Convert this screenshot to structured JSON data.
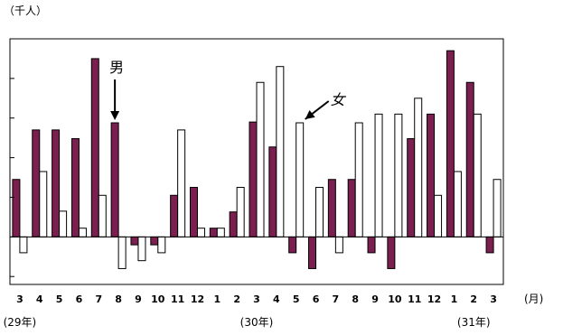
{
  "chart_data": {
    "type": "bar",
    "unit_label": "（千人）",
    "xlabel": "(月)",
    "categories": [
      "3",
      "4",
      "5",
      "6",
      "7",
      "8",
      "9",
      "10",
      "11",
      "12",
      "1",
      "2",
      "3",
      "4",
      "5",
      "6",
      "7",
      "8",
      "9",
      "10",
      "11",
      "12",
      "1",
      "2",
      "3"
    ],
    "year_labels": [
      {
        "text": "(29年)",
        "category_index": 0
      },
      {
        "text": "(30年)",
        "category_index": 12
      },
      {
        "text": "(31年)",
        "category_index": 23
      }
    ],
    "series": [
      {
        "name": "男",
        "color": "#7a1f4f",
        "values": [
          1.45,
          2.7,
          2.7,
          2.48,
          4.5,
          2.88,
          -0.2,
          -0.2,
          1.05,
          1.25,
          0.22,
          0.63,
          2.9,
          2.27,
          -0.4,
          -0.8,
          1.45,
          1.45,
          -0.4,
          -0.8,
          2.48,
          3.1,
          4.7,
          3.9,
          -0.4
        ]
      },
      {
        "name": "女",
        "color": "#ffffff",
        "values": [
          -0.4,
          1.65,
          0.65,
          0.22,
          1.05,
          -0.8,
          -0.6,
          -0.4,
          2.7,
          0.22,
          0.22,
          1.25,
          3.9,
          4.3,
          2.88,
          1.25,
          -0.4,
          2.88,
          3.1,
          3.1,
          3.5,
          1.05,
          1.65,
          3.1,
          1.45
        ]
      }
    ],
    "annotations": [
      {
        "text": "男",
        "series_index": 0,
        "category_index": 5
      },
      {
        "text": "女",
        "series_index": 1,
        "category_index": 14
      }
    ],
    "ylim": [
      -1.2,
      5.0
    ],
    "y_tick_step": 1,
    "gridlines": false,
    "legend": "annotated"
  }
}
